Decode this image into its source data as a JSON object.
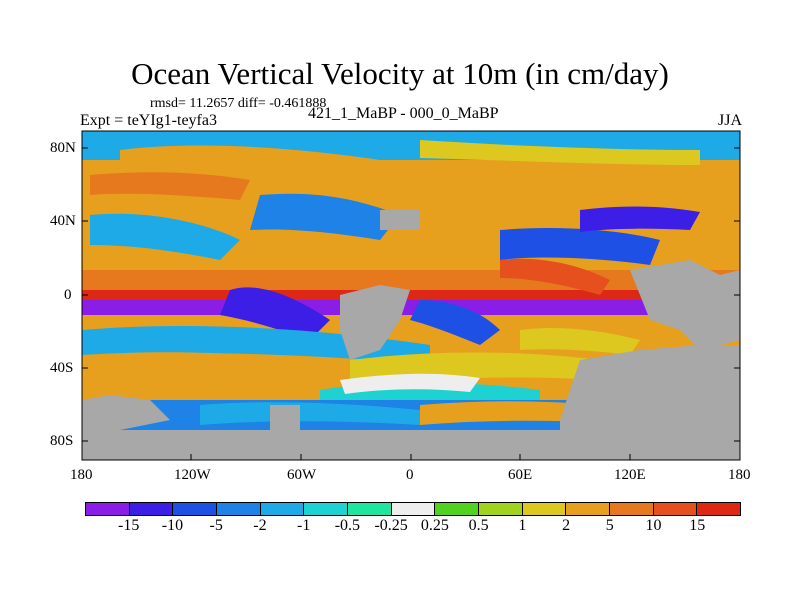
{
  "title": "Ocean Vertical Velocity at 10m (in cm/day)",
  "stats_line": "rmsd= 11.2657 diff= -0.461888",
  "experiment_label": "Expt = teYIg1-teyfa3",
  "comparison_label": "421_1_MaBP - 000_0_MaBP",
  "season_label": "JJA",
  "axes": {
    "y_ticks": [
      "80N",
      "40N",
      "0",
      "40S",
      "80S"
    ],
    "x_ticks": [
      "180",
      "120W",
      "60W",
      "0",
      "60E",
      "120E",
      "180"
    ]
  },
  "colorbar": {
    "labels": [
      "-15",
      "-10",
      "-5",
      "-2",
      "-1",
      "-0.5",
      "-0.25",
      "0.25",
      "0.5",
      "1",
      "2",
      "5",
      "10",
      "15"
    ],
    "colors": [
      "#8a1ee6",
      "#3c1ee6",
      "#1e50e6",
      "#1e82e6",
      "#1eaae6",
      "#1ed2d2",
      "#1ee6a0",
      "#eeeeee",
      "#50d21e",
      "#a0d21e",
      "#dcc81e",
      "#e6a01e",
      "#e6781e",
      "#e6501e",
      "#dc2814"
    ]
  },
  "legend_colors": {
    "land": "#a8a8a8"
  }
}
